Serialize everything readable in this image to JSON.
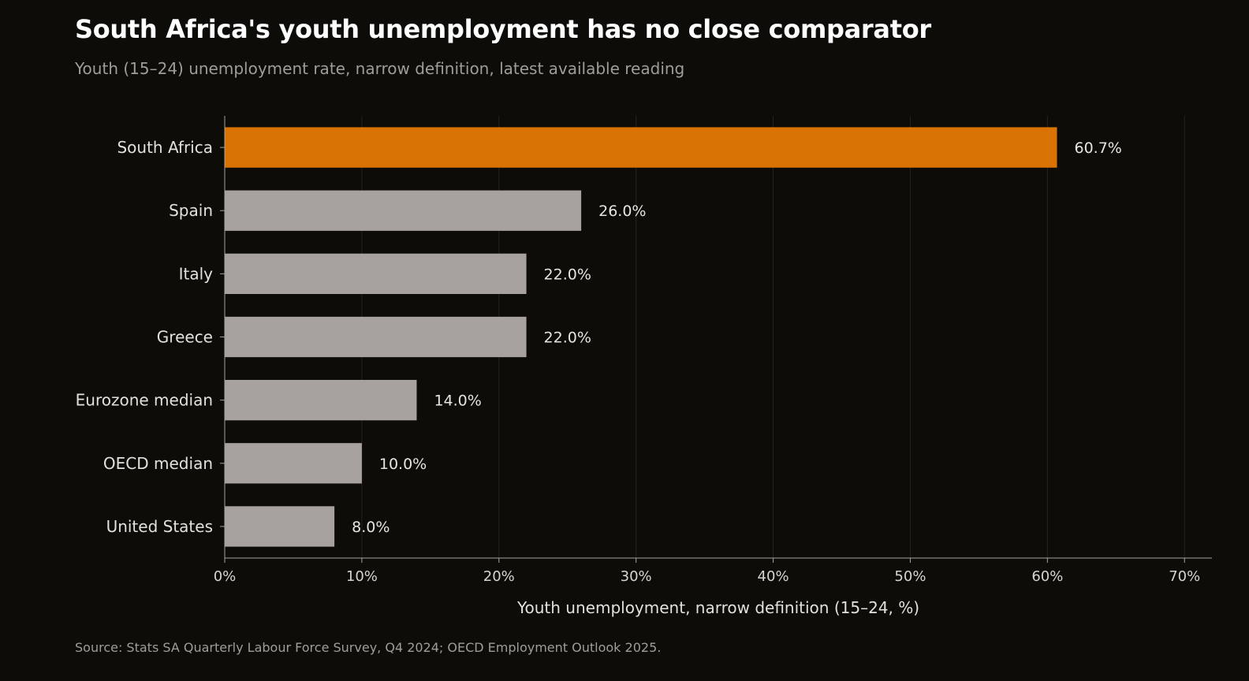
{
  "title": "South Africa's youth unemployment has no close comparator",
  "subtitle": "Youth (15–24) unemployment rate, narrow definition, latest available reading",
  "source": "Source: Stats SA Quarterly Labour Force Survey, Q4 2024; OECD Employment Outlook 2025.",
  "chart_data": {
    "type": "bar",
    "orientation": "horizontal",
    "categories": [
      "South Africa",
      "Spain",
      "Italy",
      "Greece",
      "Eurozone median",
      "OECD median",
      "United States"
    ],
    "values": [
      60.7,
      26.0,
      22.0,
      22.0,
      14.0,
      10.0,
      8.0
    ],
    "value_labels": [
      "60.7%",
      "26.0%",
      "22.0%",
      "22.0%",
      "14.0%",
      "10.0%",
      "8.0%"
    ],
    "highlight_index": 0,
    "xlabel": "Youth unemployment, narrow definition (15–24, %)",
    "ylabel": "",
    "xlim": [
      0,
      72
    ],
    "xticks": [
      0,
      10,
      20,
      30,
      40,
      50,
      60,
      70
    ],
    "xtick_labels": [
      "0%",
      "10%",
      "20%",
      "30%",
      "40%",
      "50%",
      "60%",
      "70%"
    ],
    "grid": "vertical",
    "colors": {
      "highlight": "#d97404",
      "default": "#a8a29e",
      "grid": "#262420",
      "axis": "#a8a29e"
    }
  }
}
